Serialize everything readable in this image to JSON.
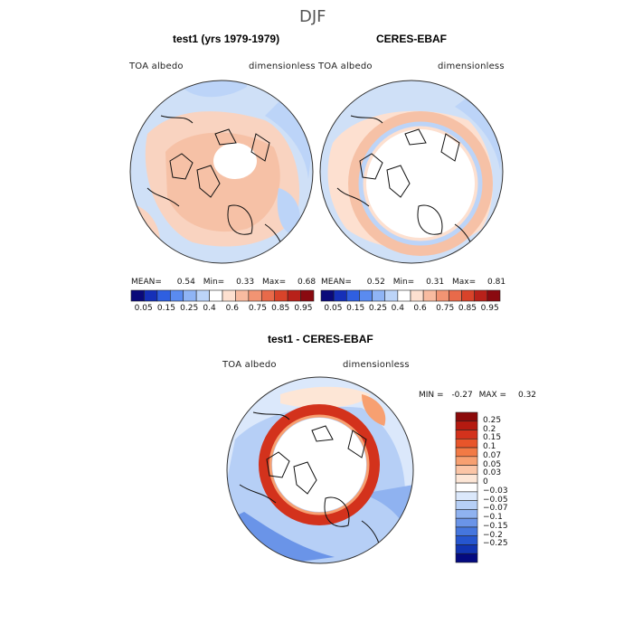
{
  "figure_title": "DJF",
  "panels": [
    {
      "title": "test1 (yrs 1979-1979)",
      "left_label": "TOA albedo",
      "right_label": "dimensionless",
      "stats": {
        "mean_label": "MEAN=",
        "mean": "0.54",
        "min_label": "Min=",
        "min": "0.33",
        "max_label": "Max=",
        "max": "0.68"
      }
    },
    {
      "title": "CERES-EBAF",
      "left_label": "TOA albedo",
      "right_label": "dimensionless",
      "stats": {
        "mean_label": "MEAN=",
        "mean": "0.52",
        "min_label": "Min=",
        "min": "0.31",
        "max_label": "Max=",
        "max": "0.81"
      }
    },
    {
      "title": "test1 - CERES-EBAF",
      "left_label": "TOA albedo",
      "right_label": "dimensionless",
      "stats": {
        "min_label": "MIN =",
        "min": "-0.27",
        "max_label": "MAX =",
        "max": "0.32"
      }
    }
  ],
  "chart_data": [
    {
      "type": "heatmap",
      "title": "test1 (yrs 1979-1979)",
      "projection": "north polar stereographic",
      "variable": "TOA albedo",
      "units": "dimensionless",
      "mean": 0.54,
      "min": 0.33,
      "max": 0.68,
      "colorbar_levels": [
        0.05,
        0.15,
        0.25,
        0.4,
        0.6,
        0.75,
        0.85,
        0.95
      ],
      "colorbar_colors": [
        "#0a0a7a",
        "#1530b8",
        "#2f5fe0",
        "#5a8bf0",
        "#8fb4f5",
        "#bcd4f8",
        "#ffffff",
        "#fde0d0",
        "#f8bba0",
        "#f29473",
        "#e86a4a",
        "#d8432a",
        "#b8211a",
        "#8a0a10"
      ]
    },
    {
      "type": "heatmap",
      "title": "CERES-EBAF",
      "projection": "north polar stereographic",
      "variable": "TOA albedo",
      "units": "dimensionless",
      "mean": 0.52,
      "min": 0.31,
      "max": 0.81,
      "colorbar_levels": [
        0.05,
        0.15,
        0.25,
        0.4,
        0.6,
        0.75,
        0.85,
        0.95
      ],
      "colorbar_colors": [
        "#0a0a7a",
        "#1530b8",
        "#2f5fe0",
        "#5a8bf0",
        "#8fb4f5",
        "#bcd4f8",
        "#ffffff",
        "#fde0d0",
        "#f8bba0",
        "#f29473",
        "#e86a4a",
        "#d8432a",
        "#b8211a",
        "#8a0a10"
      ]
    },
    {
      "type": "heatmap",
      "title": "test1 - CERES-EBAF",
      "projection": "north polar stereographic",
      "variable": "TOA albedo",
      "units": "dimensionless",
      "min": -0.27,
      "max": 0.32,
      "colorbar_labels": [
        "0.25",
        "0.2",
        "0.15",
        "0.1",
        "0.07",
        "0.05",
        "0.03",
        "0",
        "−0.03",
        "−0.05",
        "−0.07",
        "−0.1",
        "−0.15",
        "−0.2",
        "−0.25"
      ],
      "colorbar_colors": [
        "#8c0a0a",
        "#b51a10",
        "#d3321c",
        "#e8552a",
        "#f27a45",
        "#f7a071",
        "#fbc5a6",
        "#fde6d6",
        "#ffffff",
        "#dbe8fb",
        "#b6cff6",
        "#8fb2f0",
        "#6a94e8",
        "#4576de",
        "#2656cf",
        "#1235b2",
        "#040a80"
      ]
    }
  ]
}
